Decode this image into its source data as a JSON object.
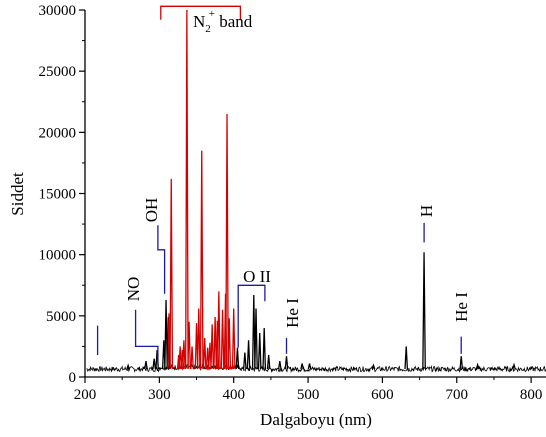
{
  "chart_data": {
    "type": "line",
    "title": "",
    "xlabel": "Dalgaboyu (nm)",
    "ylabel": "Siddet",
    "xlim": [
      200,
      820
    ],
    "ylim": [
      0,
      30000
    ],
    "x_ticks": [
      200,
      300,
      400,
      500,
      600,
      700,
      800
    ],
    "y_ticks": [
      0,
      5000,
      10000,
      15000,
      20000,
      25000,
      30000
    ],
    "grid": false,
    "legend": "none",
    "colors": {
      "spectrum": "#000000",
      "n2_band": "#d40000",
      "annotation": "#1a1aa8",
      "band_bracket": "#d40000"
    },
    "baseline": 650,
    "series": [
      {
        "color": "#000000",
        "peaks": [
          {
            "x": 258,
            "y": 950
          },
          {
            "x": 282,
            "y": 1300
          },
          {
            "x": 293,
            "y": 1500
          },
          {
            "x": 297,
            "y": 2200
          },
          {
            "x": 306,
            "y": 3000
          },
          {
            "x": 309,
            "y": 6300
          },
          {
            "x": 312,
            "y": 4900
          },
          {
            "x": 405,
            "y": 2400
          },
          {
            "x": 415,
            "y": 2000
          },
          {
            "x": 420,
            "y": 3000
          },
          {
            "x": 427,
            "y": 6700
          },
          {
            "x": 430,
            "y": 5600
          },
          {
            "x": 435,
            "y": 3600
          },
          {
            "x": 441,
            "y": 4000
          },
          {
            "x": 447,
            "y": 1800
          },
          {
            "x": 462,
            "y": 1300
          },
          {
            "x": 471,
            "y": 1700
          },
          {
            "x": 492,
            "y": 1100
          },
          {
            "x": 502,
            "y": 1100
          },
          {
            "x": 588,
            "y": 950
          },
          {
            "x": 632,
            "y": 2500
          },
          {
            "x": 656,
            "y": 10200
          },
          {
            "x": 706,
            "y": 1700
          },
          {
            "x": 728,
            "y": 1000
          },
          {
            "x": 777,
            "y": 1000
          }
        ]
      },
      {
        "color": "#d40000",
        "peaks": [
          {
            "x": 313,
            "y": 5200
          },
          {
            "x": 316,
            "y": 16200
          },
          {
            "x": 326,
            "y": 1800
          },
          {
            "x": 328,
            "y": 2500
          },
          {
            "x": 331,
            "y": 2200
          },
          {
            "x": 333,
            "y": 3000
          },
          {
            "x": 337,
            "y": 30000
          },
          {
            "x": 340,
            "y": 4500
          },
          {
            "x": 344,
            "y": 2500
          },
          {
            "x": 350,
            "y": 4400
          },
          {
            "x": 353,
            "y": 5600
          },
          {
            "x": 357,
            "y": 18500
          },
          {
            "x": 361,
            "y": 3200
          },
          {
            "x": 365,
            "y": 2400
          },
          {
            "x": 368,
            "y": 2800
          },
          {
            "x": 371,
            "y": 4300
          },
          {
            "x": 375,
            "y": 4900
          },
          {
            "x": 378,
            "y": 4600
          },
          {
            "x": 380,
            "y": 7000
          },
          {
            "x": 385,
            "y": 5500
          },
          {
            "x": 389,
            "y": 6800
          },
          {
            "x": 391,
            "y": 21500
          },
          {
            "x": 394,
            "y": 4800
          },
          {
            "x": 400,
            "y": 5600
          }
        ]
      }
    ],
    "annotations": [
      {
        "text": "NO"
      },
      {
        "text": "OH"
      },
      {
        "text": "N",
        "sub": "2",
        "sup": "+",
        "rest": " band"
      },
      {
        "text": "O II"
      },
      {
        "text": "He I"
      },
      {
        "text": "H"
      },
      {
        "text": "He I"
      }
    ]
  }
}
